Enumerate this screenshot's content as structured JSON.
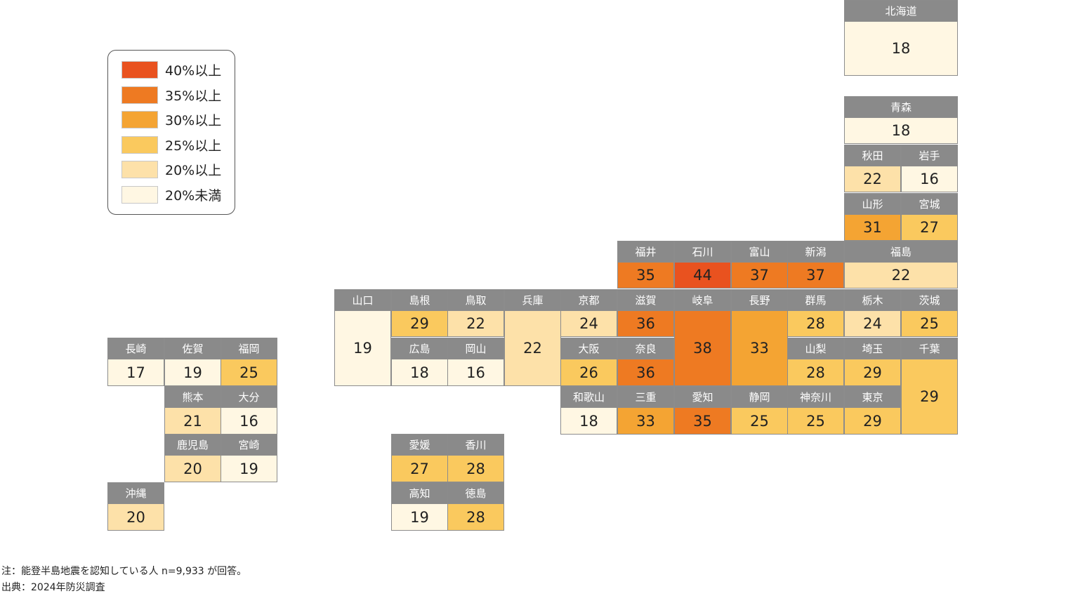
{
  "legend": {
    "items": [
      {
        "label": "40%以上",
        "color": "#e9521f"
      },
      {
        "label": "35%以上",
        "color": "#ee7a22"
      },
      {
        "label": "30%以上",
        "color": "#f4a433"
      },
      {
        "label": "25%以上",
        "color": "#fac95e"
      },
      {
        "label": "20%以上",
        "color": "#fde1a9"
      },
      {
        "label": "20%未満",
        "color": "#fff7e3"
      }
    ]
  },
  "prefectures": [
    {
      "name": "北海道",
      "value": 18
    },
    {
      "name": "青森",
      "value": 18
    },
    {
      "name": "秋田",
      "value": 22
    },
    {
      "name": "岩手",
      "value": 16
    },
    {
      "name": "山形",
      "value": 31
    },
    {
      "name": "宮城",
      "value": 27
    },
    {
      "name": "福井",
      "value": 35
    },
    {
      "name": "石川",
      "value": 44
    },
    {
      "name": "富山",
      "value": 37
    },
    {
      "name": "新潟",
      "value": 37
    },
    {
      "name": "福島",
      "value": 22
    },
    {
      "name": "山口",
      "value": 19
    },
    {
      "name": "島根",
      "value": 29
    },
    {
      "name": "鳥取",
      "value": 22
    },
    {
      "name": "兵庫",
      "value": 22
    },
    {
      "name": "京都",
      "value": 24
    },
    {
      "name": "滋賀",
      "value": 36
    },
    {
      "name": "岐阜",
      "value": 38
    },
    {
      "name": "長野",
      "value": 33
    },
    {
      "name": "群馬",
      "value": 28
    },
    {
      "name": "栃木",
      "value": 24
    },
    {
      "name": "茨城",
      "value": 25
    },
    {
      "name": "広島",
      "value": 18
    },
    {
      "name": "岡山",
      "value": 16
    },
    {
      "name": "大阪",
      "value": 26
    },
    {
      "name": "奈良",
      "value": 36
    },
    {
      "name": "山梨",
      "value": 28
    },
    {
      "name": "埼玉",
      "value": 29
    },
    {
      "name": "千葉",
      "value": 29
    },
    {
      "name": "和歌山",
      "value": 18
    },
    {
      "name": "三重",
      "value": 33
    },
    {
      "name": "愛知",
      "value": 35
    },
    {
      "name": "静岡",
      "value": 25
    },
    {
      "name": "神奈川",
      "value": 25
    },
    {
      "name": "東京",
      "value": 29
    },
    {
      "name": "長崎",
      "value": 17
    },
    {
      "name": "佐賀",
      "value": 19
    },
    {
      "name": "福岡",
      "value": 25
    },
    {
      "name": "熊本",
      "value": 21
    },
    {
      "name": "大分",
      "value": 16
    },
    {
      "name": "鹿児島",
      "value": 20
    },
    {
      "name": "宮崎",
      "value": 19
    },
    {
      "name": "沖縄",
      "value": 20
    },
    {
      "name": "愛媛",
      "value": 27
    },
    {
      "name": "香川",
      "value": 28
    },
    {
      "name": "高知",
      "value": 19
    },
    {
      "name": "徳島",
      "value": 28
    }
  ],
  "notes": {
    "note": "注：能登半島地震を認知している人 n=9,933 が回答。",
    "source": "出典：2024年防災調査"
  }
}
